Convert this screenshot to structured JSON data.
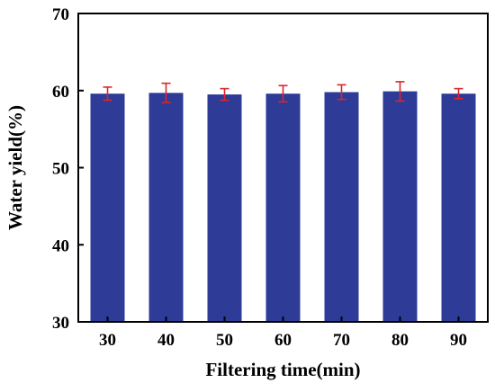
{
  "chart_data": {
    "type": "bar",
    "categories": [
      "30",
      "40",
      "50",
      "60",
      "70",
      "80",
      "90"
    ],
    "values": [
      59.6,
      59.7,
      59.5,
      59.6,
      59.8,
      59.9,
      59.6
    ],
    "error": [
      0.85,
      1.25,
      0.75,
      1.05,
      0.95,
      1.25,
      0.65
    ],
    "xlabel": "Filtering time(min)",
    "ylabel": "Water yield(%)",
    "ylim": [
      30,
      70
    ],
    "yticks": [
      "30",
      "40",
      "50",
      "60",
      "70"
    ],
    "bar_color": "#2e3b97",
    "error_color": "#d9262c",
    "grid": false,
    "legend": "none"
  }
}
